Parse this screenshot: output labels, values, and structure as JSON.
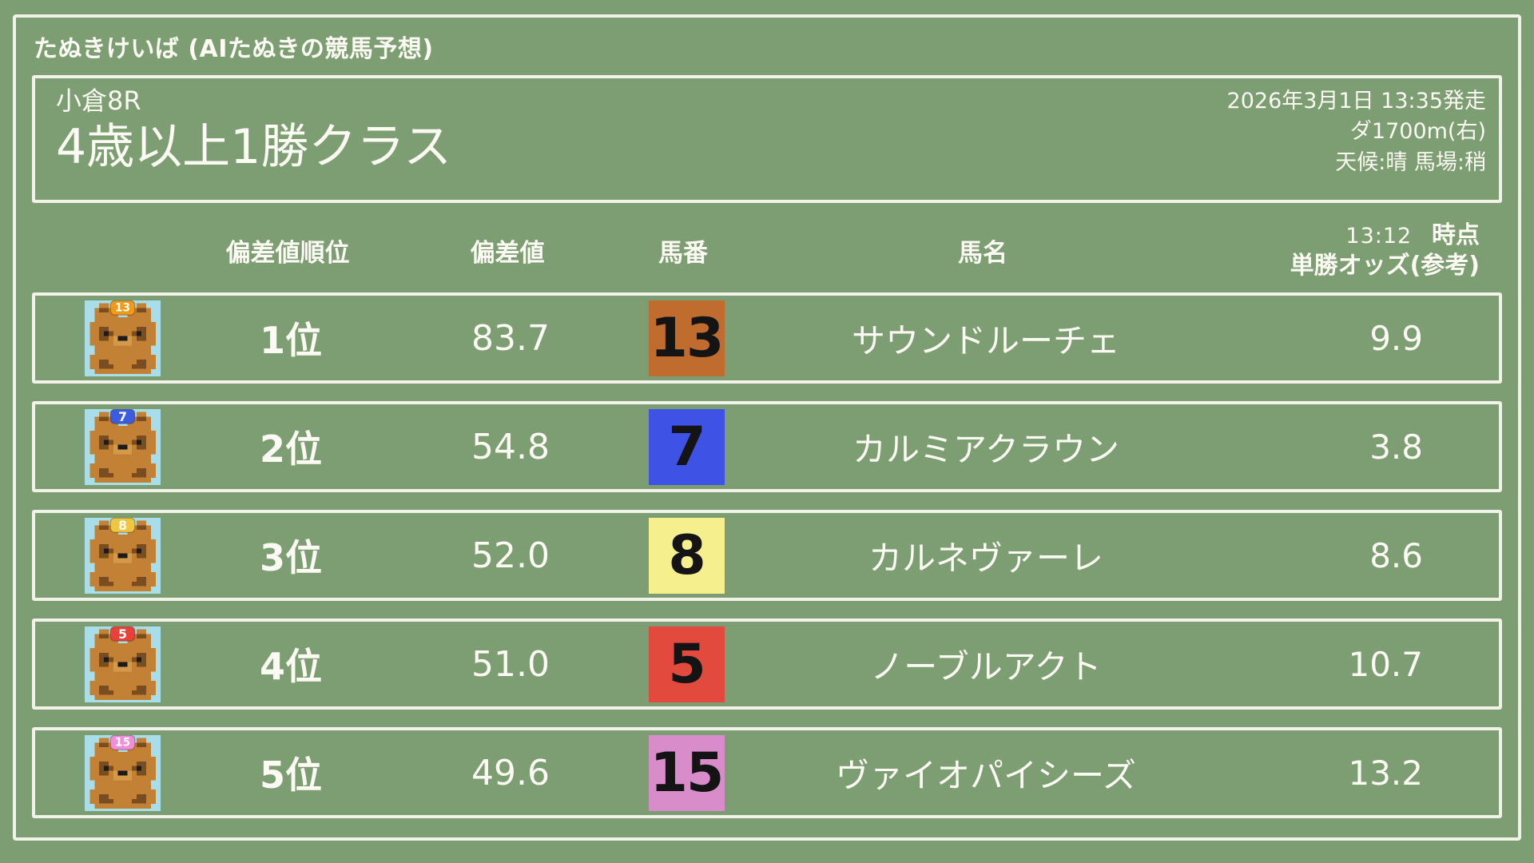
{
  "app": {
    "title": "たぬきけいば (AIたぬきの競馬予想)"
  },
  "race": {
    "venue_race": "小倉8R",
    "race_name": "4歳以上1勝クラス",
    "datetime": "2026年3月1日 13:35発走",
    "course": "ダ1700m(右)",
    "conditions": "天候:晴 馬場:稍"
  },
  "table": {
    "headers": {
      "rank": "偏差値順位",
      "score": "偏差値",
      "number": "馬番",
      "name": "馬名",
      "odds_time": "13:12",
      "odds_time_label": "時点",
      "odds_label": "単勝オッズ(参考)"
    },
    "rows": [
      {
        "rank": "1位",
        "score": "83.7",
        "number": "13",
        "name": "サウンドルーチェ",
        "odds": "9.9",
        "number_bg": "#c16c2f",
        "number_fg": "#141414",
        "badge_color": "#f09a15"
      },
      {
        "rank": "2位",
        "score": "54.8",
        "number": "7",
        "name": "カルミアクラウン",
        "odds": "3.8",
        "number_bg": "#3e52e6",
        "number_fg": "#141414",
        "badge_color": "#3b5ce0"
      },
      {
        "rank": "3位",
        "score": "52.0",
        "number": "8",
        "name": "カルネヴァーレ",
        "odds": "8.6",
        "number_bg": "#f6ef8d",
        "number_fg": "#141414",
        "badge_color": "#eec63f"
      },
      {
        "rank": "4位",
        "score": "51.0",
        "number": "5",
        "name": "ノーブルアクト",
        "odds": "10.7",
        "number_bg": "#e14a3d",
        "number_fg": "#141414",
        "badge_color": "#e8413a"
      },
      {
        "rank": "5位",
        "score": "49.6",
        "number": "15",
        "name": "ヴァイオパイシーズ",
        "odds": "13.2",
        "number_bg": "#d88cc9",
        "number_fg": "#141414",
        "badge_color": "#f08fd8"
      }
    ]
  },
  "colors": {
    "background": "#7d9e72",
    "frame": "#f3f2e8",
    "text": "#fbfaf3",
    "avatar_background": "#a8dee9",
    "tanuki_body": "#c28134",
    "tanuki_dark": "#7a4d1f"
  }
}
